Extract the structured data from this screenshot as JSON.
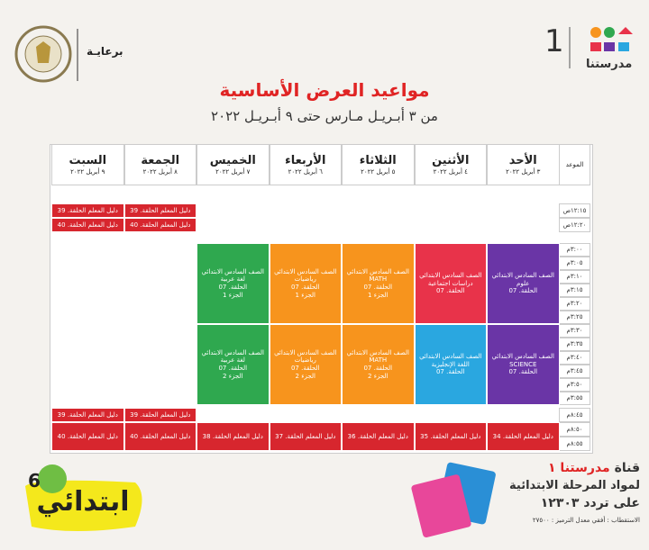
{
  "header": {
    "sponsor": "برعايـة",
    "brand": "مدرستنا",
    "brand_number": "1"
  },
  "title": "مواعيد العرض الأساسية",
  "subtitle": "من ٣ أبـريـل مـارس حتى ٩ أبـريـل ٢٠٢٢",
  "table": {
    "time_header": "الموعد",
    "days": [
      {
        "name": "الأحد",
        "date": "٣ أبريل ٢٠٢٢"
      },
      {
        "name": "الأثنين",
        "date": "٤ أبريل ٢٠٢٢"
      },
      {
        "name": "الثلاثاء",
        "date": "٥ أبريل ٢٠٢٢"
      },
      {
        "name": "الأربعاء",
        "date": "٦ أبريل ٢٠٢٢"
      },
      {
        "name": "الخميس",
        "date": "٧ أبريل ٢٠٢٢"
      },
      {
        "name": "الجمعة",
        "date": "٨ أبريل ٢٠٢٢"
      },
      {
        "name": "السبت",
        "date": "٩ أبريل ٢٠٢٢"
      }
    ],
    "rows": [
      {
        "times": [
          "١٢:١٥ص"
        ],
        "cells": [
          null,
          null,
          null,
          null,
          null,
          {
            "lines": [
              "دليل المعلم الحلقة. 39"
            ],
            "color": "#d7262e"
          },
          {
            "lines": [
              "دليل المعلم الحلقة. 39"
            ],
            "color": "#d7262e"
          }
        ]
      },
      {
        "times": [
          "١٢:٢٠ص"
        ],
        "cells": [
          null,
          null,
          null,
          null,
          null,
          {
            "lines": [
              "دليل المعلم الحلقة. 40"
            ],
            "color": "#d7262e"
          },
          {
            "lines": [
              "دليل المعلم الحلقة. 40"
            ],
            "color": "#d7262e"
          }
        ]
      },
      {
        "times": [
          "٣:٠٠م",
          "٣:٠٥م",
          "٣:١٠م",
          "٣:١٥م",
          "٣:٢٠م",
          "٣:٢٥م"
        ],
        "cells": [
          {
            "lines": [
              "الصف السادس الابتدائي",
              "علوم",
              "الحلقة. 07"
            ],
            "color": "#6a35a6"
          },
          {
            "lines": [
              "الصف السادس الابتدائي",
              "دراسات اجتماعية",
              "الحلقة. 07"
            ],
            "color": "#e8334a"
          },
          {
            "lines": [
              "الصف السادس الابتدائي",
              "MATH",
              "الحلقة. 07",
              "الجزء 1"
            ],
            "color": "#f7941d"
          },
          {
            "lines": [
              "الصف السادس الابتدائي",
              "رياضيات",
              "الحلقة. 07",
              "الجزء 1"
            ],
            "color": "#f7941d"
          },
          {
            "lines": [
              "الصف السادس الابتدائي",
              "لغة عربية",
              "الحلقة. 07",
              "الجزء 1"
            ],
            "color": "#2fa84f"
          },
          null,
          null
        ]
      },
      {
        "times": [
          "٣:٣٠م",
          "٣:٣٥م",
          "٣:٤٠م",
          "٣:٤٥م",
          "٣:٥٠م",
          "٣:٥٥م"
        ],
        "cells": [
          {
            "lines": [
              "الصف السادس الابتدائي",
              "SCIENCE",
              "الحلقة. 07"
            ],
            "color": "#6a35a6"
          },
          {
            "lines": [
              "الصف السادس الابتدائي",
              "اللغة الإنجليزية",
              "الحلقة. 07"
            ],
            "color": "#2aa7e0"
          },
          {
            "lines": [
              "الصف السادس الابتدائي",
              "MATH",
              "الحلقة. 07",
              "الجزء 2"
            ],
            "color": "#f7941d"
          },
          {
            "lines": [
              "الصف السادس الابتدائي",
              "رياضيات",
              "الحلقة. 07",
              "الجزء 2"
            ],
            "color": "#f7941d"
          },
          {
            "lines": [
              "الصف السادس الابتدائي",
              "لغة عربية",
              "الحلقة. 07",
              "الجزء 2"
            ],
            "color": "#2fa84f"
          },
          null,
          null
        ]
      },
      {
        "times": [
          "٨:٤٥م"
        ],
        "cells": [
          null,
          null,
          null,
          null,
          null,
          {
            "lines": [
              "دليل المعلم الحلقة. 39"
            ],
            "color": "#d7262e"
          },
          {
            "lines": [
              "دليل المعلم الحلقة. 39"
            ],
            "color": "#d7262e"
          }
        ]
      },
      {
        "times": [
          "٨:٥٠م",
          "٨:٥٥م"
        ],
        "cells": [
          {
            "lines": [
              "دليل المعلم الحلقة. 34"
            ],
            "color": "#d7262e"
          },
          {
            "lines": [
              "دليل المعلم الحلقة. 35"
            ],
            "color": "#d7262e"
          },
          {
            "lines": [
              "دليل المعلم الحلقة. 36"
            ],
            "color": "#d7262e"
          },
          {
            "lines": [
              "دليل المعلم الحلقة. 37"
            ],
            "color": "#d7262e"
          },
          {
            "lines": [
              "دليل المعلم الحلقة. 38"
            ],
            "color": "#d7262e"
          },
          {
            "lines": [
              "دليل المعلم الحلقة. 40"
            ],
            "color": "#d7262e"
          },
          {
            "lines": [
              "دليل المعلم الحلقة. 40"
            ],
            "color": "#d7262e"
          }
        ]
      }
    ]
  },
  "badge": {
    "text": "ابتدائي",
    "number": "6"
  },
  "channel": {
    "prefix": "قناة",
    "name": "مدرستنا ١",
    "line2": "لمواد المرحلة الابتدائية",
    "line3": "على تردد ١٢٣٠٣",
    "line4": "الاستقطاب : أفقي  معدل الترميز : ٢٧٥٠٠"
  }
}
